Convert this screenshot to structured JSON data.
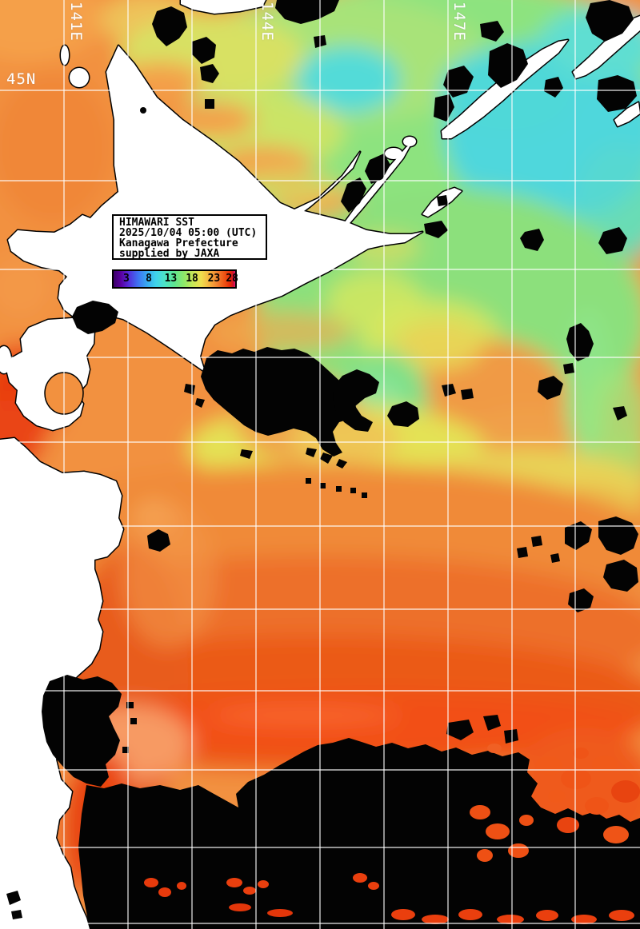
{
  "header": {
    "title_lines": [
      "HIMAWARI SST",
      "2025/10/04 05:00 (UTC)",
      "Kanagawa Prefecture",
      "supplied by JAXA"
    ]
  },
  "colorbar": {
    "tick_labels": [
      "3",
      "8",
      "13",
      "18",
      "23",
      "28"
    ],
    "tick_positions_pct": [
      10.5,
      29,
      47,
      64.5,
      82.5,
      97.5
    ],
    "gradient_stops": [
      [
        "0%",
        "#3a0068"
      ],
      [
        "6%",
        "#5a00a0"
      ],
      [
        "12%",
        "#5528d8"
      ],
      [
        "20%",
        "#3f72f2"
      ],
      [
        "28%",
        "#38acf0"
      ],
      [
        "35%",
        "#3fd4ea"
      ],
      [
        "43%",
        "#4fe4c0"
      ],
      [
        "50%",
        "#5ee690"
      ],
      [
        "58%",
        "#8ee868"
      ],
      [
        "65%",
        "#c6e858"
      ],
      [
        "72%",
        "#eede4e"
      ],
      [
        "79%",
        "#f5b03e"
      ],
      [
        "85%",
        "#f18430"
      ],
      [
        "91%",
        "#ee5414"
      ],
      [
        "96%",
        "#e42806"
      ],
      [
        "98.5%",
        "#cc1030"
      ],
      [
        "100%",
        "#e8187c"
      ]
    ]
  },
  "grid": {
    "lat_label": "45N",
    "lon_labels": [
      "141E",
      "144E",
      "147E"
    ]
  },
  "map_colors": {
    "sea_warm_orange": "#f2913f",
    "sea_hot_red": "#e84410",
    "sea_mid_yellow": "#e4e255",
    "sea_cool_green": "#8ce07c",
    "sea_cold_cyan": "#4fd7dc",
    "land": "#ffffff",
    "cloud_mask": "#000000",
    "grid_lines": "#ffffff"
  }
}
